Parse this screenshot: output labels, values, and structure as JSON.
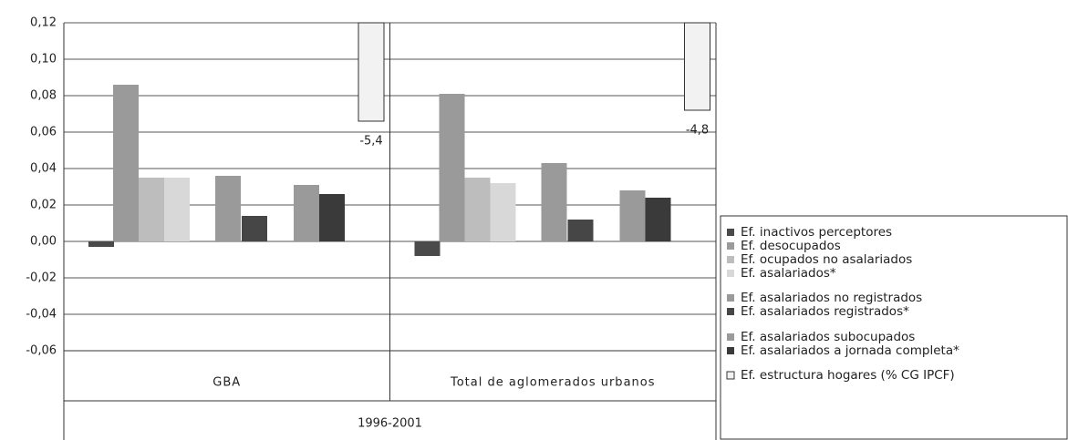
{
  "chart_data": {
    "type": "bar",
    "categories": [
      "GBA",
      "Total de aglomerados urbanos"
    ],
    "xlabel": "1996-2001",
    "ylim": [
      -0.06,
      0.12
    ],
    "yticks": [
      {
        "value": -0.06,
        "label": "-0,06"
      },
      {
        "value": -0.04,
        "label": "-0,04"
      },
      {
        "value": -0.02,
        "label": "-0,02"
      },
      {
        "value": 0,
        "label": "0,00"
      },
      {
        "value": 0.02,
        "label": "0,02"
      },
      {
        "value": 0.04,
        "label": "0,04"
      },
      {
        "value": 0.06,
        "label": "0,06"
      },
      {
        "value": 0.08,
        "label": "0,08"
      },
      {
        "value": 0.1,
        "label": "0,10"
      },
      {
        "value": 0.12,
        "label": "0,12"
      }
    ],
    "grid": true,
    "series": [
      {
        "name": "Ef. inactivos perceptores",
        "color": "#4a4a4a",
        "values": [
          -0.003,
          -0.008
        ]
      },
      {
        "name": "Ef. desocupados",
        "color": "#9a9a9a",
        "values": [
          0.086,
          0.081
        ]
      },
      {
        "name": "Ef. ocupados no asalariados",
        "color": "#bdbdbd",
        "values": [
          0.035,
          0.035
        ]
      },
      {
        "name": "Ef. asalariados*",
        "color": "#d8d8d8",
        "values": [
          0.035,
          0.032
        ]
      },
      {
        "name": "Ef. asalariados no registrados",
        "color": "#9a9a9a",
        "values": [
          0.036,
          0.043
        ]
      },
      {
        "name": "Ef. asalariados registrados*",
        "color": "#464646",
        "values": [
          0.014,
          0.012
        ]
      },
      {
        "name": "Ef. asalariados subocupados",
        "color": "#9a9a9a",
        "values": [
          0.031,
          0.028
        ]
      },
      {
        "name": "Ef. asalariados a jornada completa*",
        "color": "#3a3a3a",
        "values": [
          0.026,
          0.024
        ]
      },
      {
        "name": "Ef. estructura hogares (% CG IPCF)",
        "color": "#f2f2f2",
        "values": [
          -5.4,
          -4.8
        ],
        "value_labels": [
          "-5,4",
          "-4,8"
        ]
      }
    ]
  }
}
